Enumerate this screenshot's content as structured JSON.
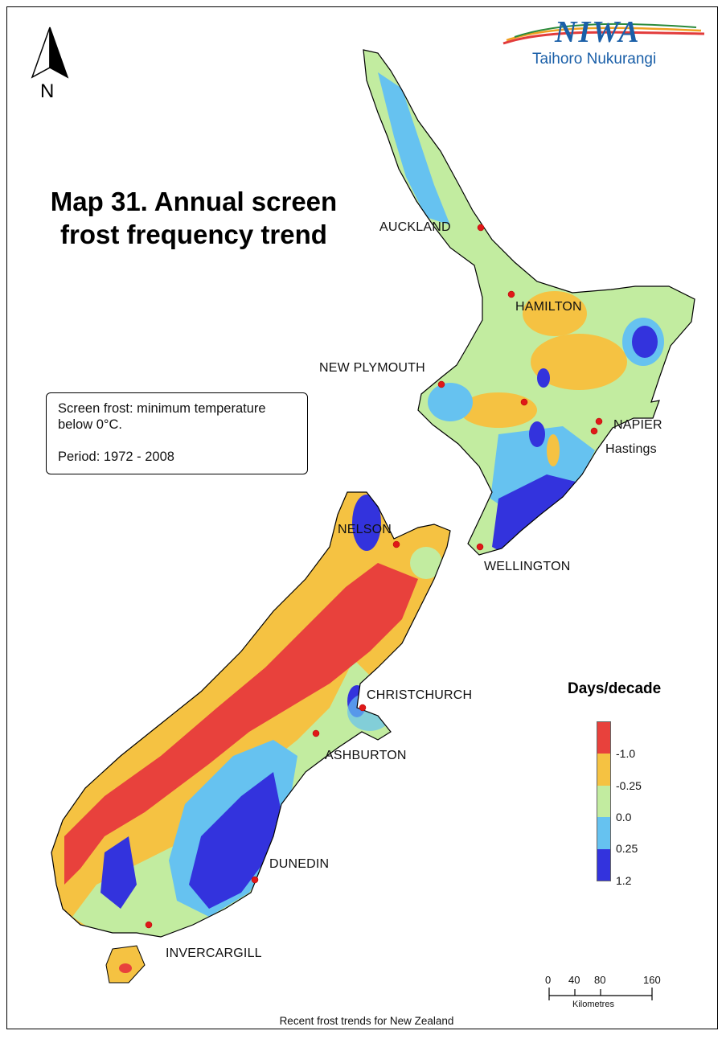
{
  "title": {
    "line1": "Map 31.  Annual screen",
    "line2": "frost frequency trend"
  },
  "info": {
    "line1": "Screen frost: minimum temperature",
    "line2": "below 0°C.",
    "period": "Period: 1972 - 2008"
  },
  "north": {
    "label": "N"
  },
  "logo": {
    "name": "NIWA",
    "subtitle": "Taihoro Nukurangi",
    "color": "#1a5fa8"
  },
  "cities": [
    {
      "name": "AUCKLAND"
    },
    {
      "name": "HAMILTON"
    },
    {
      "name": "NEW PLYMOUTH"
    },
    {
      "name": "NAPIER"
    },
    {
      "name": "Hastings"
    },
    {
      "name": "NELSON"
    },
    {
      "name": "WELLINGTON"
    },
    {
      "name": "CHRISTCHURCH"
    },
    {
      "name": "ASHBURTON"
    },
    {
      "name": "DUNEDIN"
    },
    {
      "name": "INVERCARGILL"
    }
  ],
  "legend": {
    "title": "Days/decade",
    "classes": [
      {
        "color": "#e8413c"
      },
      {
        "color": "#f5c242"
      },
      {
        "color": "#c2eca0"
      },
      {
        "color": "#66c2f0"
      },
      {
        "color": "#3333dd"
      }
    ],
    "labels": [
      "-1.0",
      "-0.25",
      "0.0",
      "0.25",
      "1.2"
    ]
  },
  "scale": {
    "ticks": [
      "0",
      "40",
      "80",
      "160"
    ],
    "unit": "Kilometres"
  },
  "footer": "Recent frost trends for New Zealand"
}
